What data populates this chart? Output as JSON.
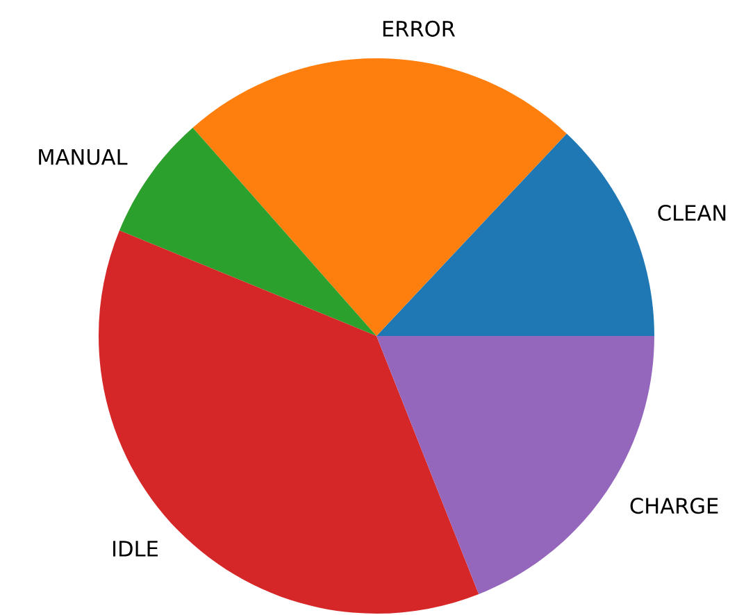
{
  "chart_data": {
    "type": "pie",
    "categories": [
      "CLEAN",
      "ERROR",
      "MANUAL",
      "IDLE",
      "CHARGE"
    ],
    "values": [
      13,
      23.5,
      7.3,
      37.2,
      19
    ],
    "colors": [
      "#1f77b4",
      "#ff7f0e",
      "#2ca02c",
      "#d62728",
      "#9467bd"
    ]
  }
}
